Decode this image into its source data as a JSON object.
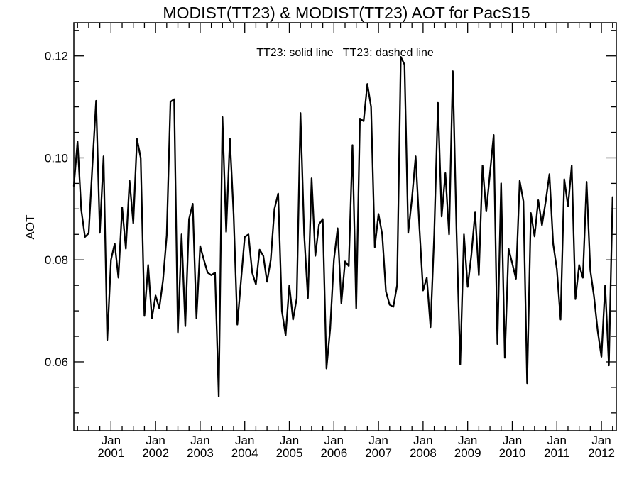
{
  "chart_data": {
    "type": "line",
    "title": "MODIST(TT23) & MODIST(TT23)  AOT for PacS15",
    "ylabel": "AOT",
    "xlabel": "",
    "annotation": "TT23: solid line   TT23: dashed line",
    "xlim": [
      "2000-03",
      "2012-05"
    ],
    "ylim": [
      0.0465,
      0.1265
    ],
    "y_ticks": [
      {
        "value": 0.06,
        "label": "0.06"
      },
      {
        "value": 0.08,
        "label": "0.08"
      },
      {
        "value": 0.1,
        "label": "0.10"
      },
      {
        "value": 0.12,
        "label": "0.12"
      }
    ],
    "x_ticks": [
      {
        "date": "2001-01",
        "month": "Jan",
        "year": "2001"
      },
      {
        "date": "2002-01",
        "month": "Jan",
        "year": "2002"
      },
      {
        "date": "2003-01",
        "month": "Jan",
        "year": "2003"
      },
      {
        "date": "2004-01",
        "month": "Jan",
        "year": "2004"
      },
      {
        "date": "2005-01",
        "month": "Jan",
        "year": "2005"
      },
      {
        "date": "2006-01",
        "month": "Jan",
        "year": "2006"
      },
      {
        "date": "2007-01",
        "month": "Jan",
        "year": "2007"
      },
      {
        "date": "2008-01",
        "month": "Jan",
        "year": "2008"
      },
      {
        "date": "2009-01",
        "month": "Jan",
        "year": "2009"
      },
      {
        "date": "2010-01",
        "month": "Jan",
        "year": "2010"
      },
      {
        "date": "2011-01",
        "month": "Jan",
        "year": "2011"
      },
      {
        "date": "2012-01",
        "month": "Jan",
        "year": "2012"
      }
    ],
    "grid": false,
    "series": [
      {
        "style": "solid",
        "color": "#000000",
        "start": "2000-03",
        "values": [
          0.0945,
          0.1032,
          0.0898,
          0.0845,
          0.0852,
          0.0985,
          0.1112,
          0.0853,
          0.1003,
          0.0643,
          0.08,
          0.0832,
          0.0765,
          0.0903,
          0.0822,
          0.0955,
          0.0872,
          0.1037,
          0.1,
          0.069,
          0.079,
          0.0685,
          0.073,
          0.0705,
          0.076,
          0.0848,
          0.111,
          0.1115,
          0.0658,
          0.085,
          0.067,
          0.088,
          0.091,
          0.0685,
          0.0827,
          0.08,
          0.0775,
          0.077,
          0.0775,
          0.0532,
          0.108,
          0.0855,
          0.1038,
          0.089,
          0.0673,
          0.076,
          0.0845,
          0.085,
          0.0775,
          0.0752,
          0.082,
          0.0808,
          0.0757,
          0.08,
          0.09,
          0.093,
          0.07,
          0.0652,
          0.075,
          0.0683,
          0.0725,
          0.1088,
          0.085,
          0.0725,
          0.096,
          0.0808,
          0.087,
          0.088,
          0.0587,
          0.0665,
          0.08,
          0.0862,
          0.0715,
          0.0797,
          0.0788,
          0.1025,
          0.0705,
          0.1077,
          0.1072,
          0.1145,
          0.11,
          0.0825,
          0.089,
          0.085,
          0.0738,
          0.0712,
          0.0708,
          0.075,
          0.1198,
          0.1183,
          0.0853,
          0.092,
          0.1003,
          0.0865,
          0.074,
          0.0765,
          0.0668,
          0.085,
          0.1108,
          0.0885,
          0.097,
          0.085,
          0.117,
          0.0855,
          0.0595,
          0.085,
          0.0747,
          0.081,
          0.0893,
          0.077,
          0.0985,
          0.0895,
          0.097,
          0.1045,
          0.0635,
          0.095,
          0.0608,
          0.0822,
          0.0793,
          0.0763,
          0.0955,
          0.0915,
          0.0558,
          0.0892,
          0.0846,
          0.0917,
          0.0868,
          0.0915,
          0.0968,
          0.0832,
          0.0782,
          0.0683,
          0.0958,
          0.0905,
          0.0985,
          0.0723,
          0.079,
          0.0765,
          0.0953,
          0.078,
          0.0728,
          0.066,
          0.061,
          0.075,
          0.0593,
          0.0923
        ]
      }
    ]
  }
}
